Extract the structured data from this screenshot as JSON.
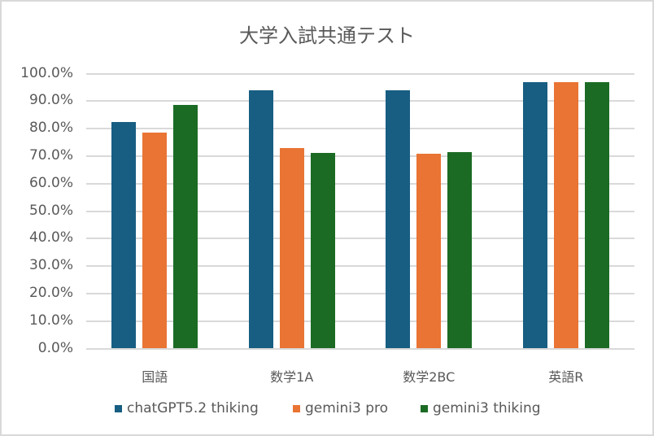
{
  "chart_data": {
    "type": "bar",
    "title": "大学入試共通テスト",
    "xlabel": "",
    "ylabel": "",
    "ylim": [
      0,
      100
    ],
    "y_tick_format": "percent_1dp",
    "y_ticks": [
      "0.0%",
      "10.0%",
      "20.0%",
      "30.0%",
      "40.0%",
      "50.0%",
      "60.0%",
      "70.0%",
      "80.0%",
      "90.0%",
      "100.0%"
    ],
    "grid": true,
    "legend_position": "bottom",
    "categories": [
      "国語",
      "数学1A",
      "数学2BC",
      "英語R"
    ],
    "series": [
      {
        "name": "chatGPT5.2 thiking",
        "color": "#175E82",
        "values": [
          82.4,
          93.9,
          93.9,
          96.9
        ]
      },
      {
        "name": "gemini3 pro",
        "color": "#E97434",
        "values": [
          78.6,
          73.0,
          70.9,
          96.9
        ]
      },
      {
        "name": "gemini3 thiking",
        "color": "#1B6B24",
        "values": [
          88.6,
          71.2,
          71.5,
          96.9
        ]
      }
    ]
  }
}
